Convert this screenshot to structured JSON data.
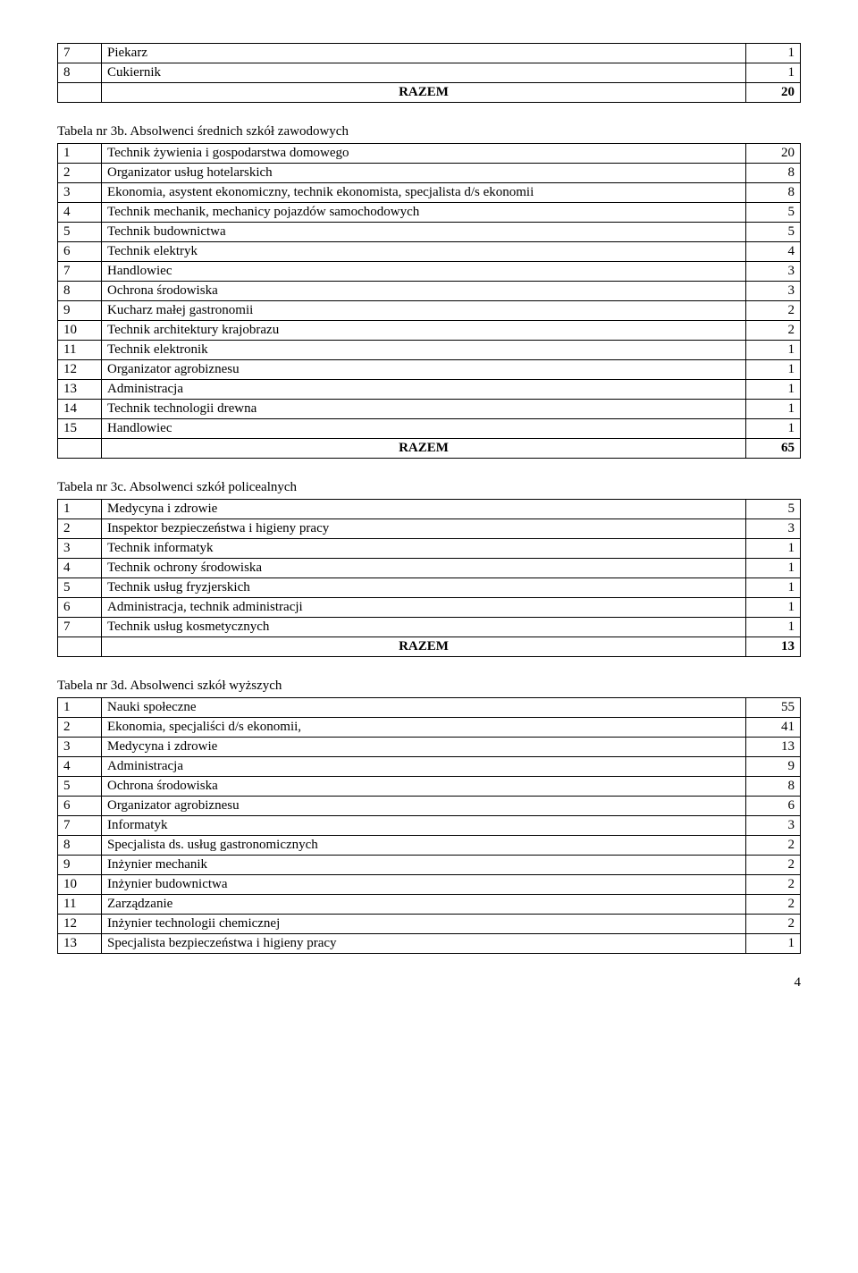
{
  "table1_top": {
    "rows": [
      {
        "n": "7",
        "label": "Piekarz",
        "v": "1"
      },
      {
        "n": "8",
        "label": "Cukiernik",
        "v": "1"
      }
    ],
    "razem_label": "RAZEM",
    "razem_val": "20"
  },
  "table3b": {
    "caption": "Tabela nr 3b. Absolwenci średnich szkół zawodowych",
    "rows": [
      {
        "n": "1",
        "label": "Technik żywienia i gospodarstwa domowego",
        "v": "20"
      },
      {
        "n": "2",
        "label": "Organizator usług hotelarskich",
        "v": "8"
      },
      {
        "n": "3",
        "label": "Ekonomia, asystent ekonomiczny, technik ekonomista, specjalista d/s ekonomii",
        "v": "8"
      },
      {
        "n": "4",
        "label": "Technik mechanik, mechanicy pojazdów samochodowych",
        "v": "5"
      },
      {
        "n": "5",
        "label": "Technik budownictwa",
        "v": "5"
      },
      {
        "n": "6",
        "label": "Technik elektryk",
        "v": "4"
      },
      {
        "n": "7",
        "label": "Handlowiec",
        "v": "3"
      },
      {
        "n": "8",
        "label": "Ochrona środowiska",
        "v": "3"
      },
      {
        "n": "9",
        "label": "Kucharz małej gastronomii",
        "v": "2"
      },
      {
        "n": "10",
        "label": "Technik architektury krajobrazu",
        "v": "2"
      },
      {
        "n": "11",
        "label": "Technik elektronik",
        "v": "1"
      },
      {
        "n": "12",
        "label": "Organizator agrobiznesu",
        "v": "1"
      },
      {
        "n": "13",
        "label": "Administracja",
        "v": "1"
      },
      {
        "n": "14",
        "label": "Technik technologii drewna",
        "v": "1"
      },
      {
        "n": "15",
        "label": "Handlowiec",
        "v": "1"
      }
    ],
    "razem_label": "RAZEM",
    "razem_val": "65"
  },
  "table3c": {
    "caption": "Tabela nr 3c. Absolwenci szkół policealnych",
    "rows": [
      {
        "n": "1",
        "label": "Medycyna i zdrowie",
        "v": "5"
      },
      {
        "n": "2",
        "label": "Inspektor bezpieczeństwa i higieny pracy",
        "v": "3"
      },
      {
        "n": "3",
        "label": "Technik informatyk",
        "v": "1"
      },
      {
        "n": "4",
        "label": "Technik ochrony środowiska",
        "v": "1"
      },
      {
        "n": "5",
        "label": "Technik usług fryzjerskich",
        "v": "1"
      },
      {
        "n": "6",
        "label": "Administracja, technik administracji",
        "v": "1"
      },
      {
        "n": "7",
        "label": "Technik usług kosmetycznych",
        "v": "1"
      }
    ],
    "razem_label": "RAZEM",
    "razem_val": "13"
  },
  "table3d": {
    "caption": "Tabela nr 3d. Absolwenci szkół wyższych",
    "rows": [
      {
        "n": "1",
        "label": "Nauki społeczne",
        "v": "55"
      },
      {
        "n": "2",
        "label": "Ekonomia, specjaliści d/s ekonomii,",
        "v": "41"
      },
      {
        "n": "3",
        "label": "Medycyna i zdrowie",
        "v": "13"
      },
      {
        "n": "4",
        "label": "Administracja",
        "v": "9"
      },
      {
        "n": "5",
        "label": "Ochrona środowiska",
        "v": "8"
      },
      {
        "n": "6",
        "label": "Organizator agrobiznesu",
        "v": "6"
      },
      {
        "n": "7",
        "label": "Informatyk",
        "v": "3"
      },
      {
        "n": "8",
        "label": "Specjalista ds. usług gastronomicznych",
        "v": "2"
      },
      {
        "n": "9",
        "label": "Inżynier mechanik",
        "v": "2"
      },
      {
        "n": "10",
        "label": "Inżynier budownictwa",
        "v": "2"
      },
      {
        "n": "11",
        "label": "Zarządzanie",
        "v": "2"
      },
      {
        "n": "12",
        "label": "Inżynier technologii chemicznej",
        "v": "2"
      },
      {
        "n": "13",
        "label": "Specjalista bezpieczeństwa i higieny pracy",
        "v": "1"
      }
    ]
  },
  "page_number": "4"
}
